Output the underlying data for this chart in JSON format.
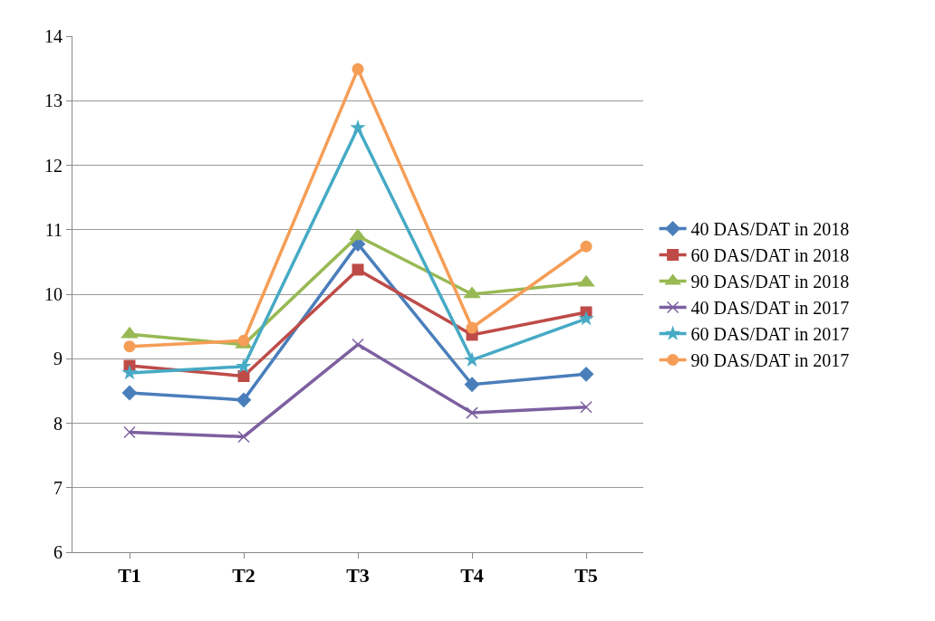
{
  "chart_data": {
    "type": "line",
    "categories": [
      "T1",
      "T2",
      "T3",
      "T4",
      "T5"
    ],
    "series": [
      {
        "name": "40 DAS/DAT in 2018",
        "color": "#4a7ebb",
        "marker": "diamond",
        "values": [
          8.47,
          8.36,
          10.78,
          8.6,
          8.76
        ]
      },
      {
        "name": "60 DAS/DAT in 2018",
        "color": "#be4b48",
        "marker": "square",
        "values": [
          8.89,
          8.73,
          10.38,
          9.37,
          9.72
        ]
      },
      {
        "name": "90 DAS/DAT in 2018",
        "color": "#98b954",
        "marker": "triangle",
        "values": [
          9.38,
          9.22,
          10.9,
          10.0,
          10.18
        ]
      },
      {
        "name": "40 DAS/DAT in 2017",
        "color": "#7d60a0",
        "marker": "cross",
        "values": [
          7.86,
          7.79,
          9.22,
          8.16,
          8.25
        ]
      },
      {
        "name": "60 DAS/DAT in 2017",
        "color": "#46aac5",
        "marker": "star",
        "values": [
          8.78,
          8.88,
          12.58,
          8.98,
          9.62
        ]
      },
      {
        "name": "90 DAS/DAT in 2017",
        "color": "#f59d56",
        "marker": "circle",
        "values": [
          9.19,
          9.28,
          13.49,
          9.48,
          10.74
        ]
      }
    ],
    "ylim": [
      6,
      14
    ],
    "yticks": [
      6,
      7,
      8,
      9,
      10,
      11,
      12,
      13,
      14
    ],
    "grid": "y",
    "legend": "right",
    "line_style": "solid"
  }
}
